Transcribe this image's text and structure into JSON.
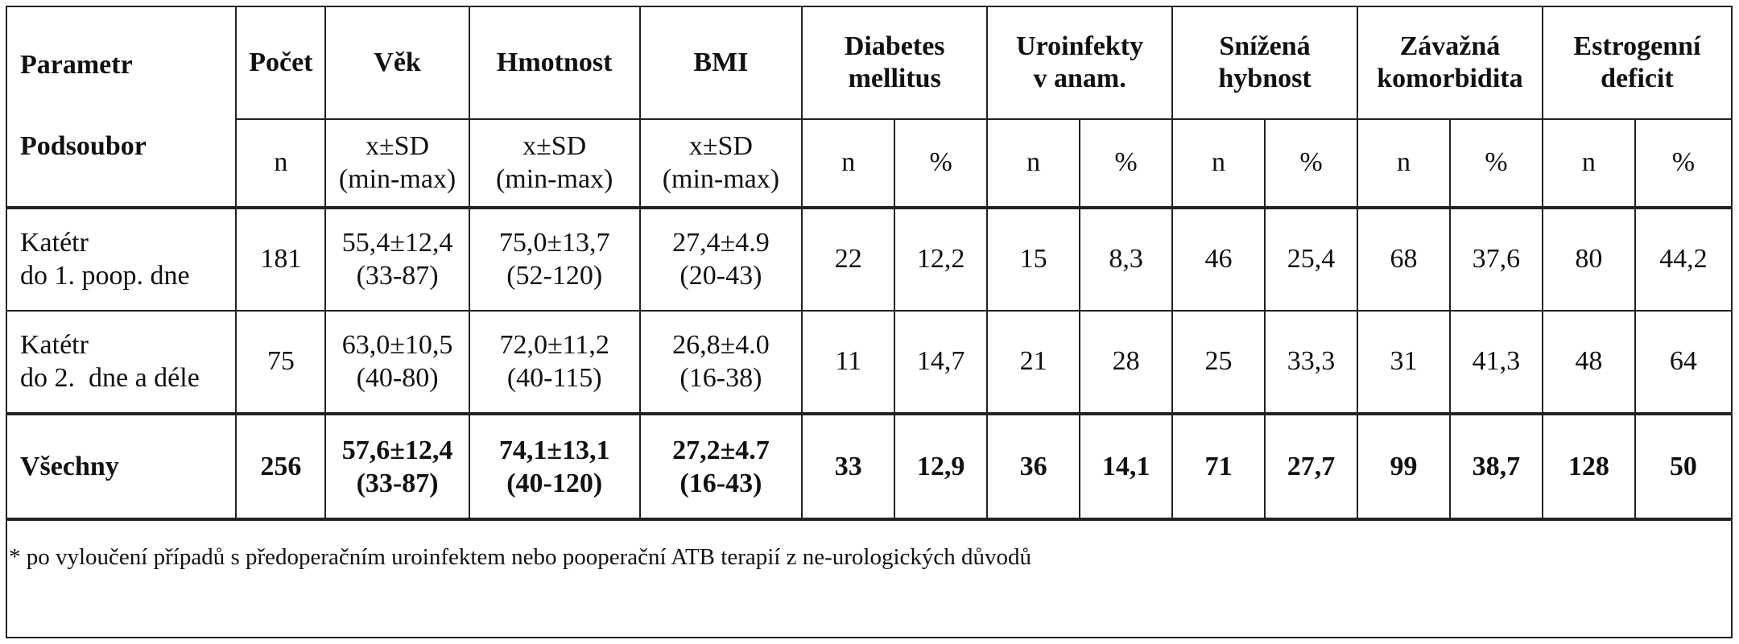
{
  "header": {
    "parametr": "Parametr",
    "podsoubor": "Podsoubor",
    "pocet": "Počet",
    "vek": "Věk",
    "hmotnost": "Hmotnost",
    "bmi": "BMI",
    "diabetes_l1": "Diabetes",
    "diabetes_l2": "mellitus",
    "uro_l1": "Uroinfekty",
    "uro_l2": "v anam.",
    "hyb_l1": "Snížená",
    "hyb_l2": "hybnost",
    "kom_l1": "Závažná",
    "kom_l2": "komorbidita",
    "est_l1": "Estrogenní",
    "est_l2": "deficit"
  },
  "subheader": {
    "n": "n",
    "stat_l1": "x±SD",
    "stat_l2": "(min-max)",
    "pct": "%"
  },
  "rows": [
    {
      "label_l1": "Katétr",
      "label_l2": "do 1. poop. dne",
      "pocet": "181",
      "vek_l1": "55,4±12,4",
      "vek_l2": "(33-87)",
      "hm_l1": "75,0±13,7",
      "hm_l2": "(52-120)",
      "bmi_l1": "27,4±4.9",
      "bmi_l2": "(20-43)",
      "dm_n": "22",
      "dm_p": "12,2",
      "uro_n": "15",
      "uro_p": "8,3",
      "hyb_n": "46",
      "hyb_p": "25,4",
      "kom_n": "68",
      "kom_p": "37,6",
      "est_n": "80",
      "est_p": "44,2"
    },
    {
      "label_l1": "Katétr",
      "label_l2": "do 2.  dne a déle",
      "pocet": "75",
      "vek_l1": "63,0±10,5",
      "vek_l2": "(40-80)",
      "hm_l1": "72,0±11,2",
      "hm_l2": "(40-115)",
      "bmi_l1": "26,8±4.0",
      "bmi_l2": "(16-38)",
      "dm_n": "11",
      "dm_p": "14,7",
      "uro_n": "21",
      "uro_p": "28",
      "hyb_n": "25",
      "hyb_p": "33,3",
      "kom_n": "31",
      "kom_p": "41,3",
      "est_n": "48",
      "est_p": "64"
    },
    {
      "label_l1": "Všechny",
      "pocet": "256",
      "vek_l1": "57,6±12,4",
      "vek_l2": "(33-87)",
      "hm_l1": "74,1±13,1",
      "hm_l2": "(40-120)",
      "bmi_l1": "27,2±4.7",
      "bmi_l2": "(16-43)",
      "dm_n": "33",
      "dm_p": "12,9",
      "uro_n": "36",
      "uro_p": "14,1",
      "hyb_n": "71",
      "hyb_p": "27,7",
      "kom_n": "99",
      "kom_p": "38,7",
      "est_n": "128",
      "est_p": "50"
    }
  ],
  "footnote": "* po vyloučení případů s předoperačním uroinfektem nebo pooperační ATB terapií z ne-urologických důvodů"
}
